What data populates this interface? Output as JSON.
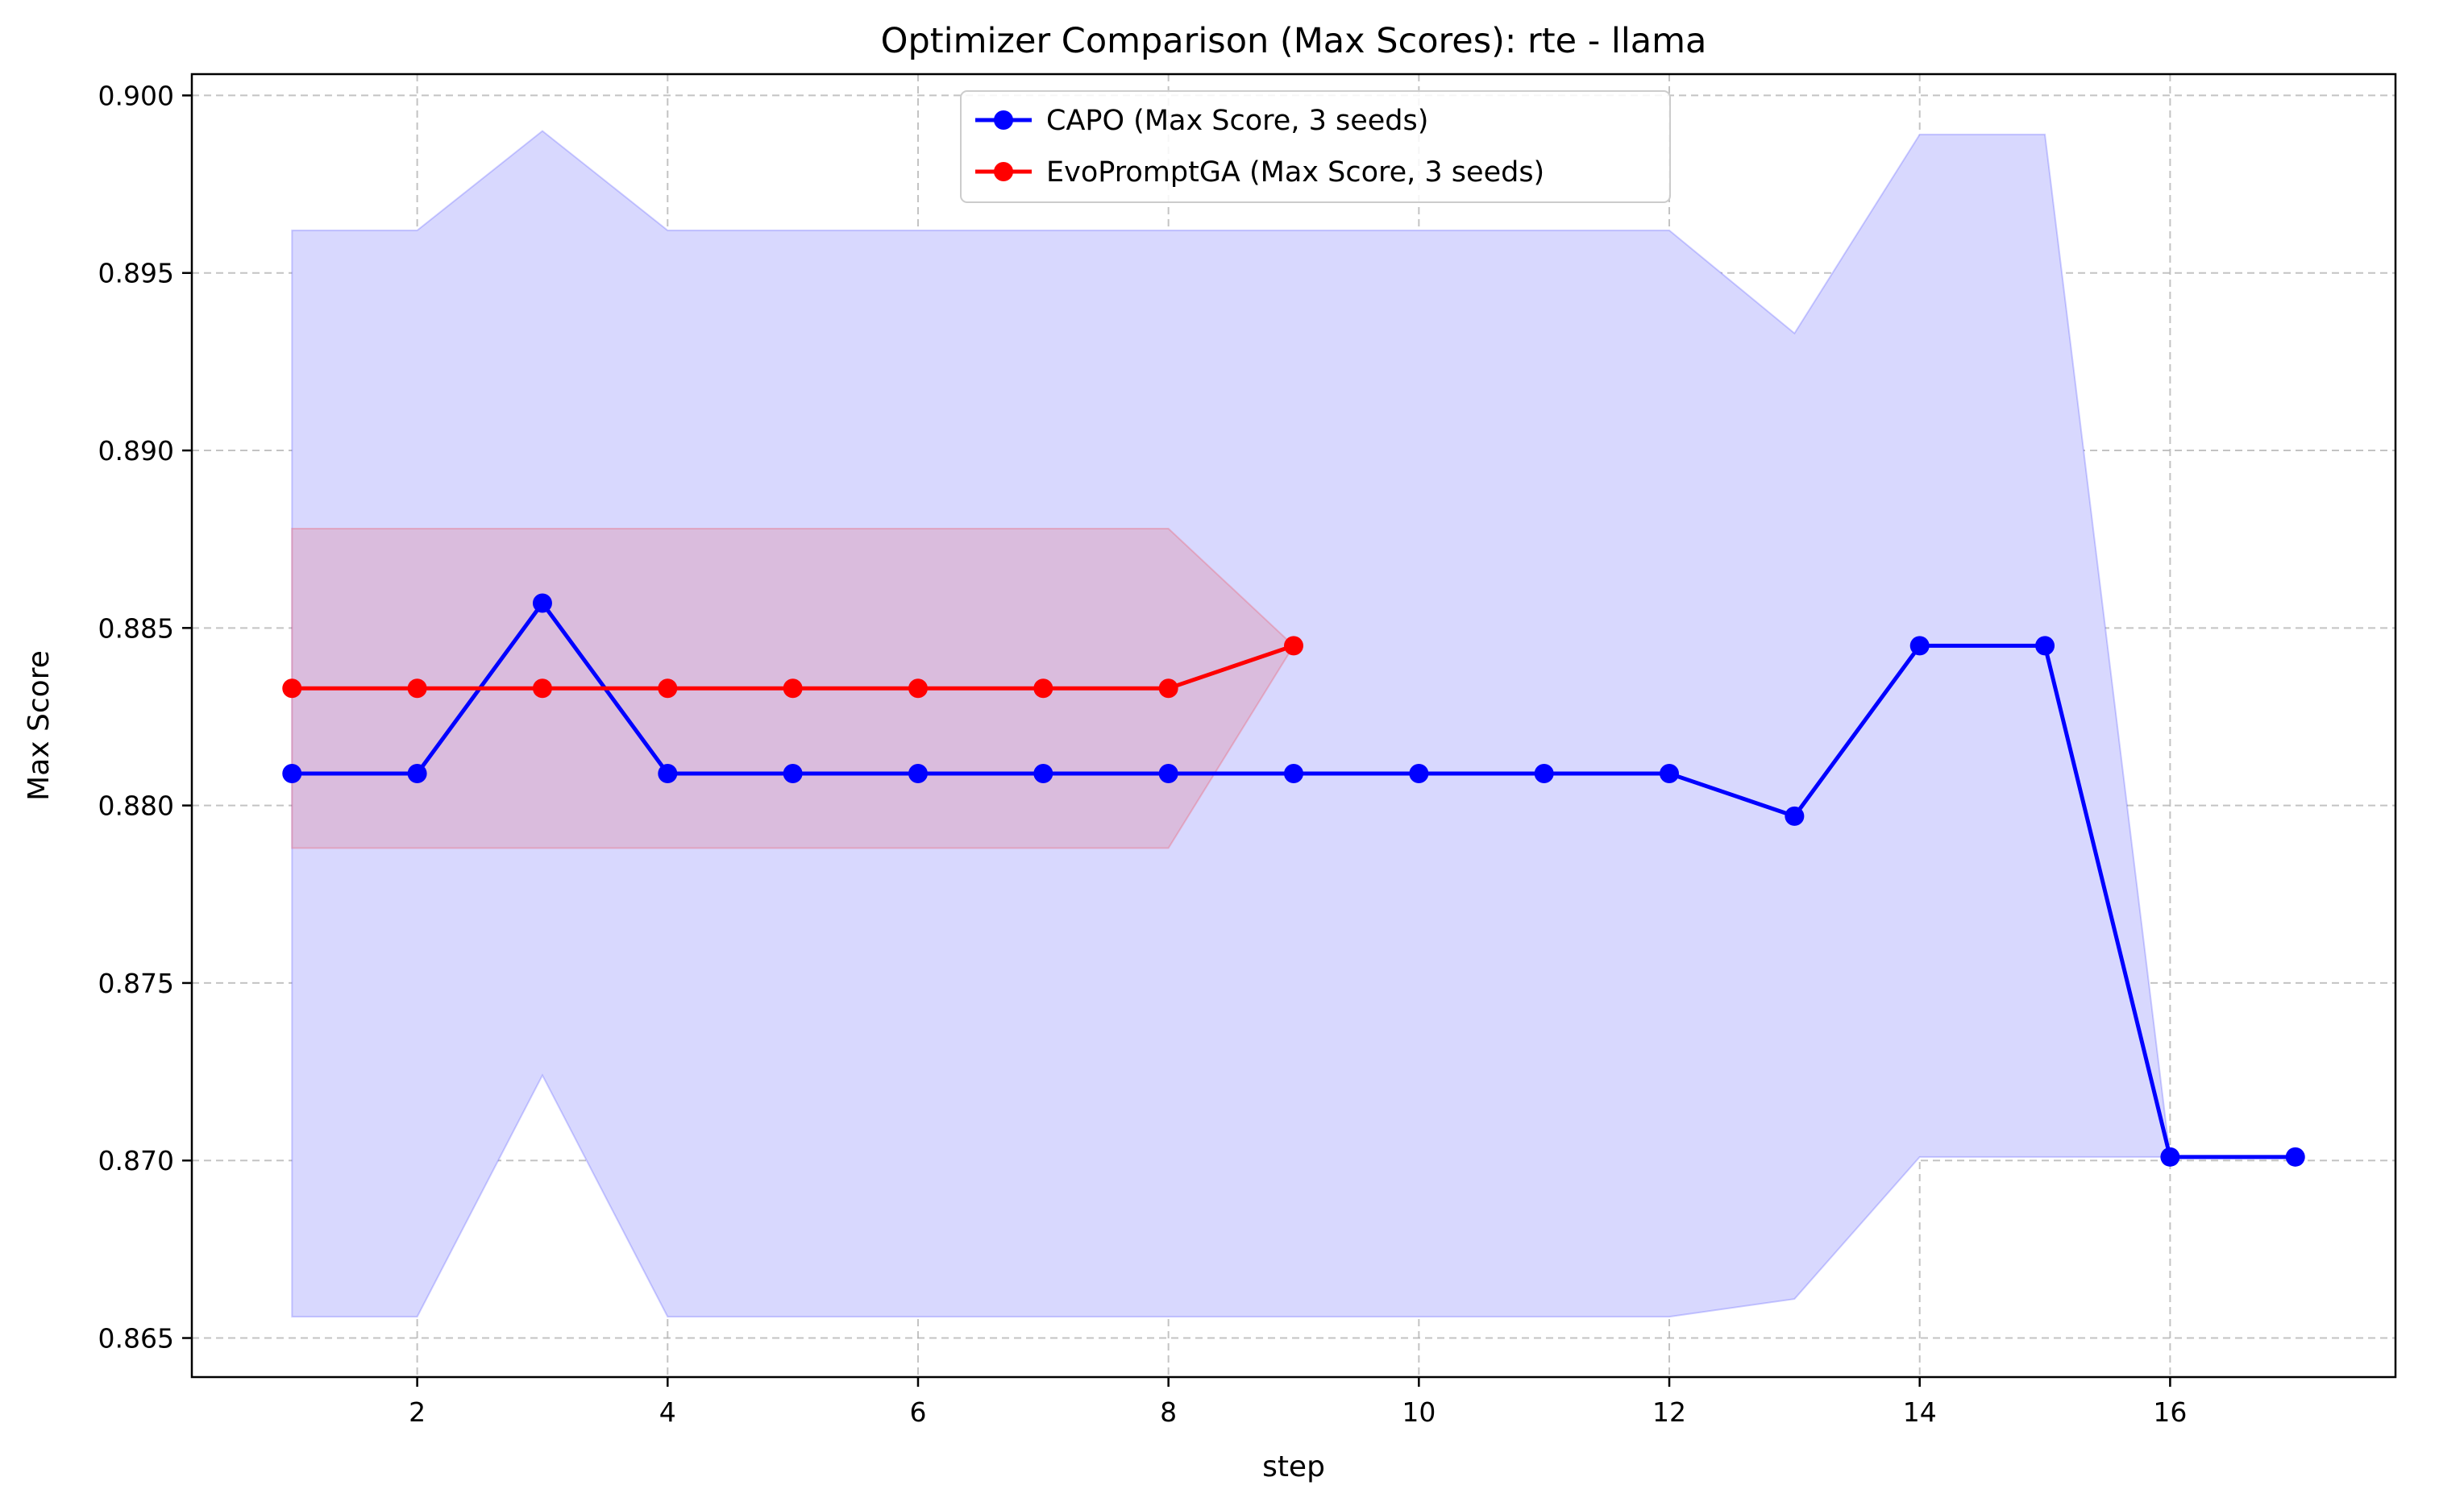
{
  "chart_data": {
    "type": "line",
    "title": "Optimizer Comparison (Max Scores): rte - llama",
    "xlabel": "step",
    "ylabel": "Max Score",
    "xlim": [
      0.2,
      17.8
    ],
    "ylim": [
      0.8639,
      0.9006
    ],
    "x_ticks": [
      2,
      4,
      6,
      8,
      10,
      12,
      14,
      16
    ],
    "y_ticks": [
      0.865,
      0.87,
      0.875,
      0.88,
      0.885,
      0.89,
      0.895,
      0.9
    ],
    "y_tick_labels": [
      "0.865",
      "0.870",
      "0.875",
      "0.880",
      "0.885",
      "0.890",
      "0.895",
      "0.900"
    ],
    "grid": true,
    "legend_position": "top-center",
    "series": [
      {
        "name": "CAPO (Max Score, 3 seeds)",
        "color": "#0000ff",
        "band_color": "#d8d8fe",
        "x": [
          1,
          2,
          3,
          4,
          5,
          6,
          7,
          8,
          9,
          10,
          11,
          12,
          13,
          14,
          15,
          16,
          17
        ],
        "values": [
          0.8809,
          0.8809,
          0.8857,
          0.8809,
          0.8809,
          0.8809,
          0.8809,
          0.8809,
          0.8809,
          0.8809,
          0.8809,
          0.8809,
          0.8797,
          0.8845,
          0.8845,
          0.8701,
          0.8701
        ],
        "upper": [
          0.8962,
          0.8962,
          0.899,
          0.8962,
          0.8962,
          0.8962,
          0.8962,
          0.8962,
          0.8962,
          0.8962,
          0.8962,
          0.8962,
          0.8933,
          0.8989,
          0.8989,
          0.8701,
          0.8701
        ],
        "lower": [
          0.8656,
          0.8656,
          0.8724,
          0.8656,
          0.8656,
          0.8656,
          0.8656,
          0.8656,
          0.8656,
          0.8656,
          0.8656,
          0.8656,
          0.8661,
          0.8701,
          0.8701,
          0.8701,
          0.8701
        ]
      },
      {
        "name": "EvoPromptGA (Max Score, 3 seeds)",
        "color": "#ff0000",
        "band_color": "#dbb7d7",
        "x": [
          1,
          2,
          3,
          4,
          5,
          6,
          7,
          8,
          9
        ],
        "values": [
          0.8833,
          0.8833,
          0.8833,
          0.8833,
          0.8833,
          0.8833,
          0.8833,
          0.8833,
          0.8845
        ],
        "upper": [
          0.8878,
          0.8878,
          0.8878,
          0.8878,
          0.8878,
          0.8878,
          0.8878,
          0.8878,
          0.8845
        ],
        "lower": [
          0.8788,
          0.8788,
          0.8788,
          0.8788,
          0.8788,
          0.8788,
          0.8788,
          0.8788,
          0.8845
        ]
      }
    ]
  }
}
